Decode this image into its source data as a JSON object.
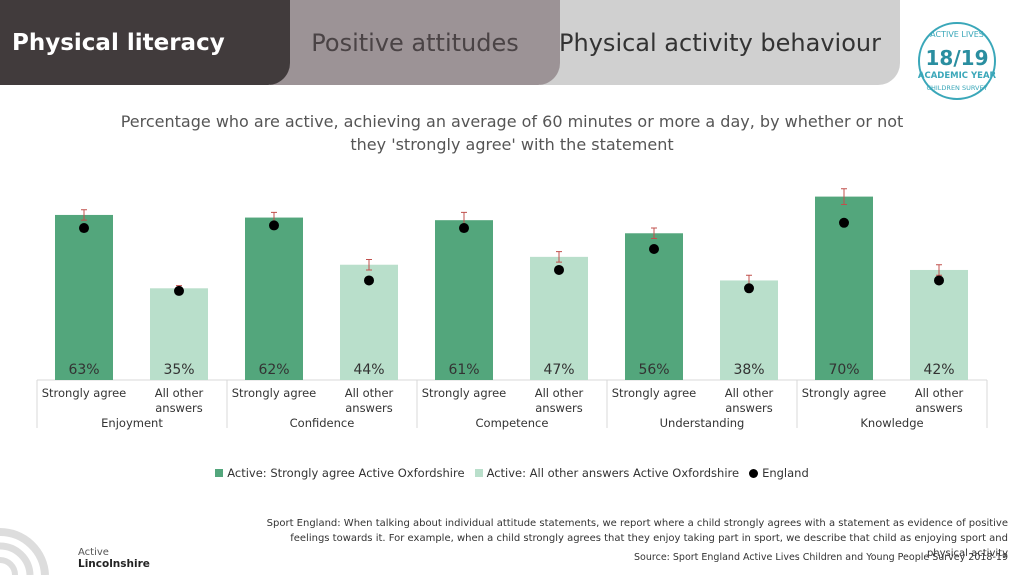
{
  "header": {
    "tabs": [
      "Physical literacy",
      "Positive attitudes",
      "Physical activity behaviour"
    ],
    "badge": {
      "top": "ACTIVE LIVES",
      "year": "18/19",
      "middle": "ACADEMIC YEAR",
      "bottom": "CHILDREN SURVEY"
    }
  },
  "chart_data": {
    "type": "grouped_bar",
    "title": "Percentage who are active, achieving an average of 60 minutes or more a day, by whether or not they 'strongly agree' with the statement",
    "categories": [
      "Enjoyment",
      "Confidence",
      "Competence",
      "Understanding",
      "Knowledge"
    ],
    "subcategories": [
      "Strongly agree",
      "All other answers"
    ],
    "series": [
      {
        "name": "Active: Strongly agree Active Oxfordshire",
        "color": "#53a67c",
        "values": [
          63,
          62,
          61,
          56,
          70
        ],
        "value_labels": [
          "63%",
          "62%",
          "61%",
          "56%",
          "70%"
        ],
        "errors": [
          2,
          2,
          3,
          2,
          3
        ]
      },
      {
        "name": "Active: All other answers Active Oxfordshire",
        "color": "#b9dfcb",
        "values": [
          35,
          44,
          47,
          38,
          42
        ],
        "value_labels": [
          "35%",
          "44%",
          "47%",
          "38%",
          "42%"
        ],
        "errors": [
          1,
          2,
          2,
          2,
          2
        ]
      },
      {
        "name": "England",
        "color": "#000000",
        "marker": "dot",
        "values": [
          [
            58,
            34
          ],
          [
            59,
            38
          ],
          [
            58,
            42
          ],
          [
            50,
            35
          ],
          [
            60,
            38
          ]
        ]
      }
    ],
    "ylim": [
      0,
      100
    ],
    "error_color": "#c0504d",
    "legend": "bottom"
  },
  "footer": {
    "note": "Sport England: When talking about individual attitude statements, we report where a child strongly agrees with a statement as evidence of positive feelings towards it. For example, when a child strongly agrees that they enjoy taking part in sport, we describe that child as enjoying sport and physical activity",
    "source": "Source: Sport England Active Lives Children and Young People Survey 2018-19",
    "logo": [
      "Active",
      "Lincolnshire"
    ]
  }
}
